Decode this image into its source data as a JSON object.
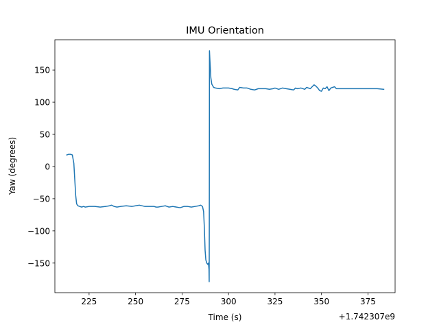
{
  "chart_data": {
    "type": "line",
    "title": "IMU Orientation",
    "xlabel": "Time (s)",
    "ylabel": "Yaw (degrees)",
    "x_offset_label": "+1.742307e9",
    "xlim": [
      206.6,
      389.6
    ],
    "ylim": [
      -196,
      197
    ],
    "xticks": [
      225,
      250,
      275,
      300,
      325,
      350,
      375
    ],
    "xtick_labels": [
      "225",
      "250",
      "275",
      "300",
      "325",
      "350",
      "375"
    ],
    "yticks": [
      -150,
      -100,
      -50,
      0,
      50,
      100,
      150
    ],
    "ytick_labels": [
      "−150",
      "−100",
      "−50",
      "0",
      "50",
      "100",
      "150"
    ],
    "grid": false,
    "legend": "none",
    "line_color": "#1f77b4",
    "series": [
      {
        "x": [
          213.0,
          214.0,
          215.0,
          216.0,
          216.8,
          217.3,
          217.8,
          218.3,
          219.0,
          220.0,
          221.0,
          222.0,
          223.0,
          225.0,
          228.0,
          231.0,
          234.0,
          236.0,
          237.0,
          238.5,
          240.0,
          242.0,
          245.0,
          248.0,
          250.0,
          252.0,
          255.0,
          258.0,
          260.0,
          261.0,
          262.0,
          264.0,
          266.0,
          267.0,
          268.0,
          270.0,
          272.0,
          274.0,
          276.0,
          278.0,
          280.0,
          282.0,
          284.0,
          285.0,
          286.0,
          286.6,
          287.0,
          287.4,
          287.8,
          288.3,
          288.8,
          289.2,
          289.5,
          289.6,
          289.65,
          289.75,
          290.0,
          290.5,
          291.0,
          292.0,
          293.0,
          295.0,
          297.0,
          300.0,
          302.0,
          303.0,
          305.0,
          306.0,
          308.0,
          310.0,
          312.0,
          314.0,
          316.0,
          318.0,
          320.0,
          322.0,
          324.0,
          325.0,
          327.0,
          329.0,
          331.0,
          333.0,
          335.0,
          336.0,
          337.0,
          339.0,
          341.0,
          342.0,
          344.0,
          345.0,
          346.0,
          347.0,
          348.0,
          349.0,
          350.0,
          351.0,
          352.0,
          353.0,
          354.0,
          355.0,
          356.0,
          357.0,
          358.0,
          359.0,
          360.0,
          365.0,
          370.0,
          375.0,
          380.0,
          383.5
        ],
        "y": [
          18,
          19,
          19,
          18,
          5,
          -20,
          -45,
          -58,
          -61,
          -62,
          -63,
          -62,
          -63,
          -62,
          -62,
          -63,
          -62,
          -61,
          -60,
          -62,
          -63,
          -62,
          -61,
          -62,
          -61,
          -60,
          -62,
          -62,
          -62,
          -63,
          -63,
          -62,
          -61,
          -62,
          -63,
          -62,
          -63,
          -64,
          -62,
          -62,
          -63,
          -62,
          -61,
          -60,
          -62,
          -70,
          -95,
          -130,
          -145,
          -150,
          -152,
          -150,
          -160,
          -179,
          -100,
          180,
          165,
          138,
          128,
          123,
          122,
          121,
          122,
          122,
          121,
          120,
          119,
          123,
          122,
          122,
          120,
          119,
          121,
          121,
          121,
          120,
          121,
          122,
          120,
          122,
          121,
          120,
          119,
          122,
          121,
          122,
          120,
          123,
          121,
          124,
          127,
          125,
          122,
          118,
          117,
          122,
          121,
          124,
          118,
          122,
          123,
          124,
          121,
          121,
          121,
          121,
          121,
          121,
          121,
          120
        ]
      }
    ]
  }
}
